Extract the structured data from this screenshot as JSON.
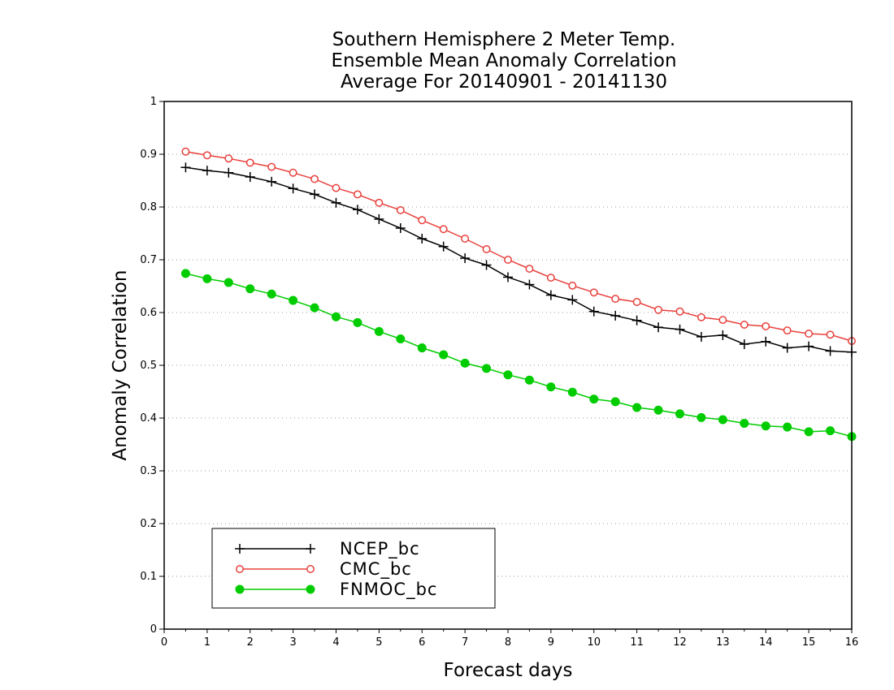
{
  "chart_data": {
    "type": "line",
    "title": [
      "Southern Hemisphere 2 Meter Temp.",
      "Ensemble Mean Anomaly Correlation",
      "Average For 20140901 - 20141130"
    ],
    "xlabel": "Forecast days",
    "ylabel": "Anomaly Correlation",
    "xlim": [
      0,
      16
    ],
    "ylim": [
      0,
      1
    ],
    "xticks": [
      "0",
      "1",
      "2",
      "3",
      "4",
      "5",
      "6",
      "7",
      "8",
      "9",
      "10",
      "11",
      "12",
      "13",
      "14",
      "15",
      "16"
    ],
    "yticks": [
      "0",
      "0.1",
      "0.2",
      "0.3",
      "0.4",
      "0.5",
      "0.6",
      "0.7",
      "0.8",
      "0.9",
      "1"
    ],
    "grid": "horizontal dotted",
    "legend_position": "bottom-left",
    "x": [
      0.5,
      1,
      1.5,
      2,
      2.5,
      3,
      3.5,
      4,
      4.5,
      5,
      5.5,
      6,
      6.5,
      7,
      7.5,
      8,
      8.5,
      9,
      9.5,
      10,
      10.5,
      11,
      11.5,
      12,
      12.5,
      13,
      13.5,
      14,
      14.5,
      15,
      15.5,
      16
    ],
    "series": [
      {
        "name": "NCEP_bc",
        "color": "#000000",
        "marker": "plus",
        "values": [
          0.875,
          0.869,
          0.865,
          0.857,
          0.848,
          0.835,
          0.824,
          0.808,
          0.795,
          0.777,
          0.76,
          0.74,
          0.725,
          0.703,
          0.69,
          0.667,
          0.653,
          0.633,
          0.624,
          0.602,
          0.594,
          0.585,
          0.572,
          0.568,
          0.554,
          0.557,
          0.54,
          0.545,
          0.533,
          0.536,
          0.527,
          0.525
        ]
      },
      {
        "name": "CMC_bc",
        "color": "#e8403c",
        "marker": "open-circle",
        "values": [
          0.905,
          0.898,
          0.892,
          0.884,
          0.876,
          0.865,
          0.853,
          0.836,
          0.824,
          0.808,
          0.794,
          0.775,
          0.758,
          0.74,
          0.72,
          0.7,
          0.683,
          0.666,
          0.651,
          0.638,
          0.626,
          0.62,
          0.605,
          0.602,
          0.591,
          0.586,
          0.577,
          0.574,
          0.566,
          0.56,
          0.558,
          0.546
        ]
      },
      {
        "name": "FNMOC_bc",
        "color": "#00cc00",
        "marker": "filled-circle",
        "values": [
          0.674,
          0.664,
          0.657,
          0.645,
          0.635,
          0.623,
          0.609,
          0.592,
          0.581,
          0.564,
          0.55,
          0.533,
          0.52,
          0.504,
          0.494,
          0.482,
          0.472,
          0.459,
          0.449,
          0.436,
          0.431,
          0.42,
          0.415,
          0.408,
          0.401,
          0.397,
          0.39,
          0.385,
          0.383,
          0.374,
          0.376,
          0.365
        ]
      }
    ]
  }
}
